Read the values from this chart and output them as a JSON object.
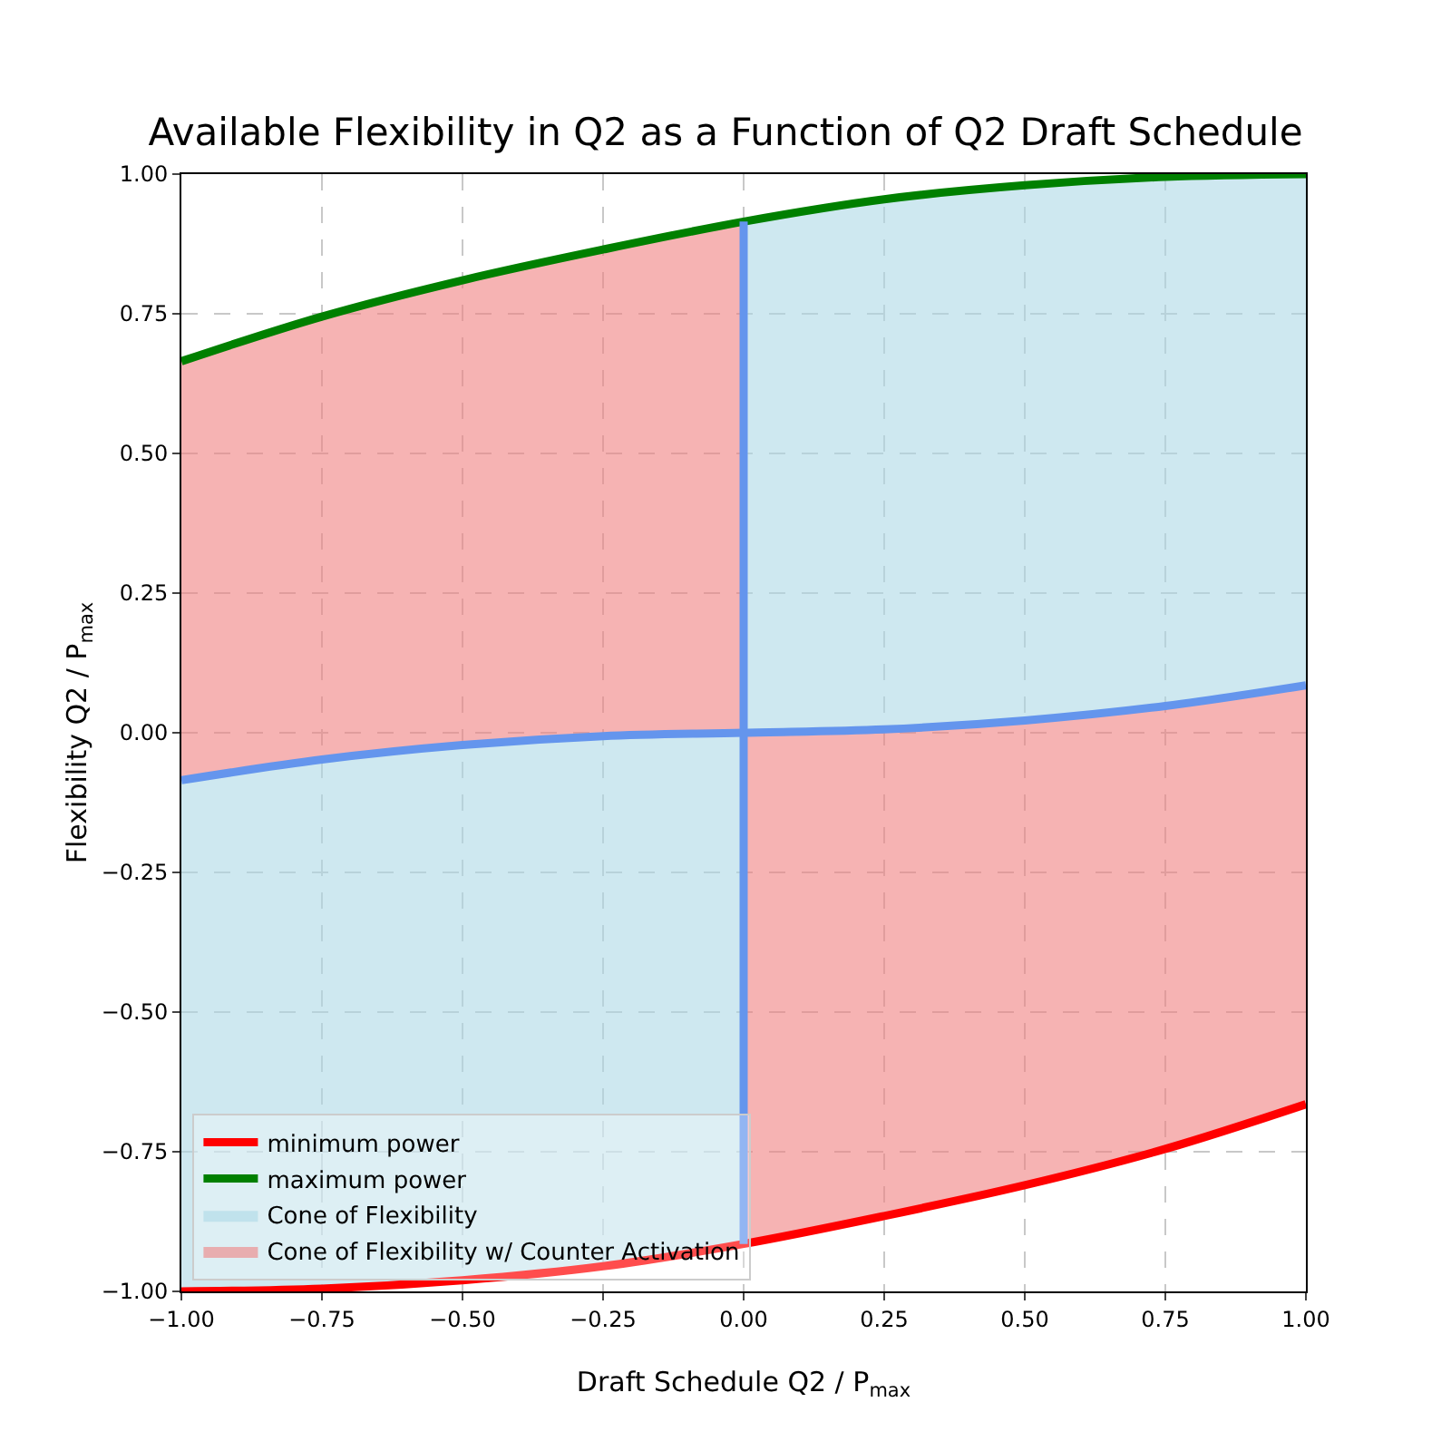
{
  "chart_data": {
    "type": "line",
    "title": "Available Flexibility in Q2 as a Function of Q2 Draft Schedule",
    "xlabel": "Draft Schedule Q2 / P$_{max}$",
    "ylabel": "Flexibility Q2 / P$_{max}$",
    "xlim": [
      -1,
      1
    ],
    "xticks": [
      {
        "value": -1,
        "label": "−1.00"
      },
      {
        "value": -0.75,
        "label": "−0.75"
      },
      {
        "value": -0.5,
        "label": "−0.50"
      },
      {
        "value": -0.25,
        "label": "−0.25"
      },
      {
        "value": 0,
        "label": "0.00"
      },
      {
        "value": 0.25,
        "label": "0.25"
      },
      {
        "value": 0.5,
        "label": "0.50"
      },
      {
        "value": 0.75,
        "label": "0.75"
      },
      {
        "value": 1,
        "label": "1.00"
      }
    ],
    "ylim": [
      -1,
      1
    ],
    "yticks": [
      {
        "value": -1,
        "label": "−1.00"
      },
      {
        "value": -0.75,
        "label": "−0.75"
      },
      {
        "value": -0.5,
        "label": "−0.50"
      },
      {
        "value": -0.25,
        "label": "−0.25"
      },
      {
        "value": 0,
        "label": "0.00"
      },
      {
        "value": 0.25,
        "label": "0.25"
      },
      {
        "value": 0.5,
        "label": "0.50"
      },
      {
        "value": 0.75,
        "label": "0.75"
      },
      {
        "value": 1,
        "label": "1.00"
      }
    ],
    "grid": true,
    "legend": "bottom left",
    "series": [
      {
        "name": "Cone of Flexibility",
        "type": "area",
        "color": "#add8e6",
        "x": [
          -1,
          -0.75,
          -0.5,
          -0.25,
          0,
          0,
          0.25,
          0.5,
          0.75,
          1
        ],
        "values": [
          null,
          null,
          null,
          null,
          null,
          null,
          null,
          null,
          null,
          null
        ],
        "upper": [
          -0.085,
          -0.048,
          -0.022,
          -0.006,
          0,
          0.915,
          0.955,
          0.98,
          0.995,
          1
        ],
        "lower": [
          -1,
          -0.995,
          -0.98,
          -0.955,
          -0.915,
          0,
          0.006,
          0.022,
          0.048,
          0.085
        ]
      },
      {
        "name": "Cone of Flexibility w/ Counter Activation",
        "type": "area",
        "color": "#f08080",
        "x": [
          -1,
          -0.75,
          -0.5,
          -0.25,
          0,
          0,
          0.25,
          0.5,
          0.75,
          1
        ],
        "values": [
          null,
          null,
          null,
          null,
          null,
          null,
          null,
          null,
          null,
          null
        ],
        "upper": [
          0.665,
          0.745,
          0.81,
          0.865,
          0.915,
          0,
          0.006,
          0.022,
          0.048,
          0.085
        ],
        "lower": [
          -0.085,
          -0.048,
          -0.022,
          -0.006,
          0,
          -0.915,
          -0.865,
          -0.81,
          -0.745,
          -0.665
        ]
      },
      {
        "name": "minimum power",
        "color": "#ff0000",
        "x": [
          -1,
          -0.75,
          -0.5,
          -0.25,
          0,
          0.25,
          0.5,
          0.75,
          1
        ],
        "values": [
          -1,
          -0.995,
          -0.98,
          -0.955,
          -0.915,
          -0.865,
          -0.81,
          -0.745,
          -0.665
        ]
      },
      {
        "name": "maximum power",
        "color": "#008000",
        "x": [
          -1,
          -0.75,
          -0.5,
          -0.25,
          0,
          0.25,
          0.5,
          0.75,
          1
        ],
        "values": [
          0.665,
          0.745,
          0.81,
          0.865,
          0.915,
          0.955,
          0.98,
          0.995,
          1
        ]
      },
      {
        "color": "#6495ed",
        "x": [
          -1,
          -0.75,
          -0.5,
          -0.25,
          0,
          0.25,
          0.5,
          0.75,
          1
        ],
        "values": [
          -0.085,
          -0.048,
          -0.022,
          -0.006,
          0,
          0.006,
          0.022,
          0.048,
          0.085
        ]
      },
      {
        "color": "#6495ed",
        "x": [
          0,
          0
        ],
        "values": [
          -0.915,
          0.915
        ]
      }
    ]
  }
}
